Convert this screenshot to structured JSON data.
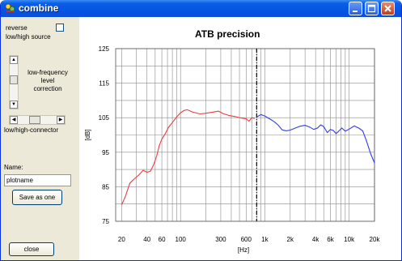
{
  "window": {
    "title": "combine"
  },
  "controls": {
    "reverse_label": "reverse",
    "source_label": "low/high source",
    "level_label": [
      "low-frequency",
      "level",
      "correction"
    ],
    "connector_label": "low/high-connector",
    "name_label": "Name:",
    "name_value": "plotname",
    "save_label": "Save as one",
    "close_label": "close"
  },
  "chart_data": {
    "type": "line",
    "title": "ATB precision",
    "xlabel": "[Hz]",
    "ylabel": "[dB]",
    "xscale": "log",
    "xlim": [
      17,
      20000
    ],
    "ylim": [
      75,
      125
    ],
    "x_ticks": [
      {
        "v": 20,
        "label": "20"
      },
      {
        "v": 40,
        "label": "40"
      },
      {
        "v": 60,
        "label": "60"
      },
      {
        "v": 100,
        "label": "100"
      },
      {
        "v": 300,
        "label": "300"
      },
      {
        "v": 600,
        "label": "600"
      },
      {
        "v": 1000,
        "label": "1k"
      },
      {
        "v": 2000,
        "label": "2k"
      },
      {
        "v": 4000,
        "label": "4k"
      },
      {
        "v": 6000,
        "label": "6k"
      },
      {
        "v": 10000,
        "label": "10k"
      },
      {
        "v": 20000,
        "label": "20k"
      }
    ],
    "y_ticks": [
      125,
      115,
      105,
      95,
      85,
      75
    ],
    "crossover_hz": 800,
    "series": [
      {
        "color": "#ee3c3c",
        "points": [
          [
            20,
            79.8
          ],
          [
            22,
            82
          ],
          [
            25,
            86
          ],
          [
            28,
            87.2
          ],
          [
            32,
            88.4
          ],
          [
            36,
            89.8
          ],
          [
            40,
            89.2
          ],
          [
            44,
            89.5
          ],
          [
            48,
            91.4
          ],
          [
            52,
            93.8
          ],
          [
            56,
            97
          ],
          [
            60,
            98.8
          ],
          [
            66,
            100.4
          ],
          [
            72,
            102.2
          ],
          [
            80,
            103.6
          ],
          [
            90,
            105.2
          ],
          [
            100,
            106.4
          ],
          [
            110,
            107.1
          ],
          [
            120,
            107.3
          ],
          [
            140,
            106.6
          ],
          [
            170,
            106.1
          ],
          [
            200,
            106.3
          ],
          [
            240,
            106.6
          ],
          [
            280,
            106.9
          ],
          [
            320,
            106.2
          ],
          [
            380,
            105.6
          ],
          [
            450,
            105.3
          ],
          [
            520,
            104.9
          ],
          [
            600,
            104.7
          ],
          [
            650,
            104.0
          ],
          [
            700,
            105.0
          ],
          [
            760,
            104.8
          ]
        ]
      },
      {
        "color": "#2f3bee",
        "points": [
          [
            800,
            105.2
          ],
          [
            900,
            105.9
          ],
          [
            1000,
            105.5
          ],
          [
            1150,
            104.6
          ],
          [
            1300,
            103.8
          ],
          [
            1450,
            102.8
          ],
          [
            1600,
            101.5
          ],
          [
            1800,
            101.2
          ],
          [
            2000,
            101.4
          ],
          [
            2300,
            102.0
          ],
          [
            2600,
            102.5
          ],
          [
            3000,
            102.8
          ],
          [
            3400,
            102.3
          ],
          [
            3800,
            101.6
          ],
          [
            4200,
            102.0
          ],
          [
            4600,
            102.9
          ],
          [
            5000,
            102.4
          ],
          [
            5500,
            100.7
          ],
          [
            6000,
            101.6
          ],
          [
            6500,
            101.3
          ],
          [
            7000,
            100.4
          ],
          [
            7600,
            101.2
          ],
          [
            8200,
            102.0
          ],
          [
            9000,
            101.1
          ],
          [
            10000,
            101.7
          ],
          [
            11500,
            102.6
          ],
          [
            13000,
            102.0
          ],
          [
            14500,
            101.2
          ],
          [
            16000,
            98.4
          ],
          [
            18000,
            94.6
          ],
          [
            20000,
            91.9
          ]
        ]
      }
    ]
  }
}
